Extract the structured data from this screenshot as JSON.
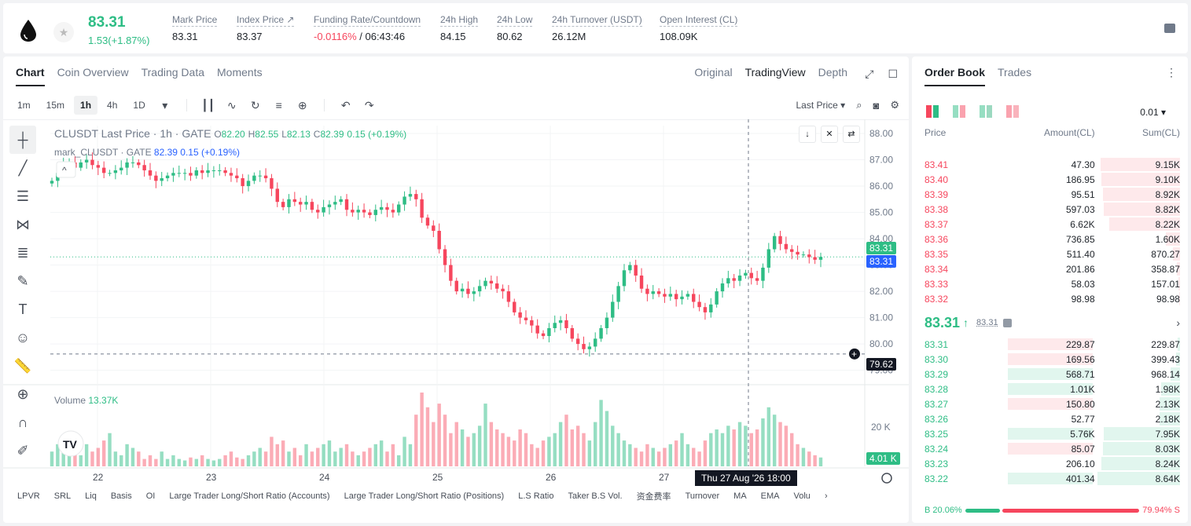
{
  "header": {
    "last_price": "83.31",
    "change": "1.53(+1.87%)",
    "stats": [
      {
        "label": "Mark Price",
        "value": "83.31"
      },
      {
        "label": "Index Price ↗",
        "value": "83.37"
      },
      {
        "label": "Funding Rate/Countdown",
        "value_neg": "-0.0116%",
        "value": " / 06:43:46"
      },
      {
        "label": "24h High",
        "value": "84.15"
      },
      {
        "label": "24h Low",
        "value": "80.62"
      },
      {
        "label": "24h Turnover (USDT)",
        "value": "26.12M"
      },
      {
        "label": "Open Interest (CL)",
        "value": "108.09K"
      }
    ]
  },
  "chart_panel": {
    "tabs": [
      "Chart",
      "Coin Overview",
      "Trading Data",
      "Moments"
    ],
    "views": [
      "Original",
      "TradingView",
      "Depth"
    ],
    "timeframes": [
      "1m",
      "15m",
      "1h",
      "4h",
      "1D"
    ],
    "price_type": "Last Price",
    "legend": {
      "title": "CLUSDT Last Price · 1h · GATE",
      "o_label": "O",
      "o": "82.20",
      "h_label": "H",
      "h": "82.55",
      "l_label": "L",
      "l": "82.13",
      "c_label": "C",
      "c": "82.39",
      "chg": "0.15 (+0.19%)",
      "mark_name": "mark_CLUSDT · GATE",
      "mark_val": "82.39  0.15 (+0.19%)"
    },
    "volume_label": "Volume",
    "volume_value": "13.37K",
    "price_badge_last": "83.31",
    "price_badge_mark": "83.31",
    "crosshair_price": "79.62",
    "volume_badge": "4.01 K",
    "crosshair_time": "Thu 27 Aug '26   18:00",
    "indicators": [
      "LPVR",
      "SRL",
      "Liq",
      "Basis",
      "OI",
      "Large Trader Long/Short Ratio (Accounts)",
      "Large Trader Long/Short Ratio (Positions)",
      "L.S Ratio",
      "Taker B.S Vol.",
      "资金费率",
      "Turnover",
      "MA",
      "EMA",
      "Volu"
    ],
    "colors": {
      "up": "#2ebd85",
      "down": "#f6465d",
      "mark_line": "#2962ff"
    }
  },
  "chart_data": {
    "type": "candlestick",
    "x_ticks": [
      "22",
      "23",
      "24",
      "25",
      "26",
      "27"
    ],
    "y_ticks": [
      "88.00",
      "87.00",
      "86.00",
      "85.00",
      "84.00",
      "83.00",
      "82.00",
      "81.00",
      "80.00",
      "79.00"
    ],
    "ylim": [
      78.6,
      88.3
    ],
    "volume_tick": "20 K",
    "close_path": [
      86.2,
      86.5,
      86.8,
      86.9,
      86.7,
      86.9,
      87.0,
      86.8,
      86.7,
      86.5,
      86.5,
      86.6,
      86.7,
      86.9,
      86.9,
      86.8,
      86.6,
      86.4,
      86.2,
      86.3,
      86.4,
      86.5,
      86.5,
      86.5,
      86.4,
      86.6,
      86.5,
      86.6,
      86.6,
      86.6,
      86.5,
      86.4,
      86.3,
      86.0,
      86.2,
      86.4,
      86.4,
      86.3,
      85.9,
      85.4,
      85.2,
      85.5,
      85.4,
      85.3,
      85.4,
      85.1,
      85.0,
      85.2,
      85.3,
      85.4,
      85.5,
      85.1,
      85.0,
      85.1,
      85.0,
      84.9,
      85.1,
      85.2,
      85.1,
      85.0,
      85.3,
      85.6,
      85.7,
      85.5,
      84.8,
      84.5,
      84.3,
      83.6,
      83.0,
      82.4,
      82.0,
      82.1,
      81.9,
      82.0,
      82.2,
      82.4,
      82.3,
      82.1,
      82.0,
      81.6,
      81.2,
      81.0,
      80.9,
      80.7,
      80.4,
      80.3,
      80.6,
      80.8,
      80.9,
      80.6,
      80.2,
      80.0,
      79.8,
      79.9,
      80.2,
      80.6,
      81.0,
      81.6,
      82.2,
      82.8,
      83.0,
      82.6,
      82.1,
      81.9,
      82.0,
      81.9,
      81.8,
      81.9,
      81.7,
      81.8,
      81.9,
      81.6,
      81.4,
      81.2,
      81.5,
      82.0,
      82.3,
      82.5,
      82.4,
      82.6,
      82.7,
      82.5,
      82.4,
      82.9,
      83.6,
      84.1,
      83.8,
      83.6,
      83.5,
      83.4,
      83.4,
      83.3,
      83.2,
      83.31
    ],
    "volume_levels": [
      0.2,
      0.3,
      0.35,
      0.25,
      0.2,
      0.15,
      0.3,
      0.2,
      0.25,
      0.35,
      0.45,
      0.2,
      0.15,
      0.3,
      0.25,
      0.2,
      0.1,
      0.15,
      0.1,
      0.2,
      0.1,
      0.15,
      0.1,
      0.08,
      0.12,
      0.1,
      0.15,
      0.1,
      0.08,
      0.1,
      0.15,
      0.2,
      0.12,
      0.1,
      0.15,
      0.2,
      0.25,
      0.2,
      0.4,
      0.3,
      0.35,
      0.2,
      0.25,
      0.15,
      0.3,
      0.2,
      0.25,
      0.3,
      0.35,
      0.2,
      0.25,
      0.3,
      0.2,
      0.15,
      0.2,
      0.25,
      0.3,
      0.35,
      0.2,
      0.3,
      0.15,
      0.4,
      0.3,
      0.7,
      1.0,
      0.8,
      0.6,
      0.85,
      0.7,
      0.45,
      0.6,
      0.5,
      0.4,
      0.45,
      0.55,
      0.85,
      0.6,
      0.5,
      0.45,
      0.4,
      0.35,
      0.5,
      0.45,
      0.3,
      0.25,
      0.35,
      0.4,
      0.45,
      0.6,
      0.7,
      0.5,
      0.55,
      0.45,
      0.35,
      0.6,
      0.9,
      0.75,
      0.55,
      0.45,
      0.35,
      0.3,
      0.25,
      0.2,
      0.3,
      0.25,
      0.2,
      0.25,
      0.3,
      0.35,
      0.45,
      0.3,
      0.25,
      0.2,
      0.35,
      0.45,
      0.5,
      0.45,
      0.55,
      0.5,
      0.6,
      0.55,
      0.45,
      0.5,
      0.65,
      0.8,
      0.7,
      0.6,
      0.55,
      0.45,
      0.3,
      0.25,
      0.2,
      0.15,
      0.12
    ]
  },
  "order_book": {
    "tabs": [
      "Order Book",
      "Trades"
    ],
    "tick_size": "0.01 ▾",
    "headers": [
      "Price",
      "Amount(CL)",
      "Sum(CL)"
    ],
    "asks": [
      {
        "p": "83.41",
        "a": "47.30",
        "s": "9.15K",
        "sum_frac": 0.96
      },
      {
        "p": "83.40",
        "a": "186.95",
        "s": "9.10K",
        "sum_frac": 0.95
      },
      {
        "p": "83.39",
        "a": "95.51",
        "s": "8.92K",
        "sum_frac": 0.93
      },
      {
        "p": "83.38",
        "a": "597.03",
        "s": "8.82K",
        "sum_frac": 0.92
      },
      {
        "p": "83.37",
        "a": "6.62K",
        "s": "8.22K",
        "sum_frac": 0.86
      },
      {
        "p": "83.36",
        "a": "736.85",
        "s": "1.60K",
        "sum_frac": 0.17
      },
      {
        "p": "83.35",
        "a": "511.40",
        "s": "870.27",
        "sum_frac": 0.09
      },
      {
        "p": "83.34",
        "a": "201.86",
        "s": "358.87",
        "sum_frac": 0.04
      },
      {
        "p": "83.33",
        "a": "58.03",
        "s": "157.01",
        "sum_frac": 0.02
      },
      {
        "p": "83.32",
        "a": "98.98",
        "s": "98.98",
        "sum_frac": 0.01
      }
    ],
    "mid_price": "83.31",
    "mid_arrow": "↑",
    "mark_price": "83.31",
    "bids": [
      {
        "p": "83.31",
        "a": "229.87",
        "s": "229.87",
        "sum_frac": 0.03,
        "amt_color": "red"
      },
      {
        "p": "83.30",
        "a": "169.56",
        "s": "399.43",
        "sum_frac": 0.05,
        "amt_color": "red"
      },
      {
        "p": "83.29",
        "a": "568.71",
        "s": "968.14",
        "sum_frac": 0.11,
        "amt_color": "green"
      },
      {
        "p": "83.28",
        "a": "1.01K",
        "s": "1.98K",
        "sum_frac": 0.23,
        "amt_color": "green"
      },
      {
        "p": "83.27",
        "a": "150.80",
        "s": "2.13K",
        "sum_frac": 0.25,
        "amt_color": "red"
      },
      {
        "p": "83.26",
        "a": "52.77",
        "s": "2.18K",
        "sum_frac": 0.25,
        "amt_color": "none"
      },
      {
        "p": "83.25",
        "a": "5.76K",
        "s": "7.95K",
        "sum_frac": 0.92,
        "amt_color": "green"
      },
      {
        "p": "83.24",
        "a": "85.07",
        "s": "8.03K",
        "sum_frac": 0.93,
        "amt_color": "red"
      },
      {
        "p": "83.23",
        "a": "206.10",
        "s": "8.24K",
        "sum_frac": 0.95,
        "amt_color": "none"
      },
      {
        "p": "83.22",
        "a": "401.34",
        "s": "8.64K",
        "sum_frac": 1.0,
        "amt_color": "green"
      }
    ],
    "buy_ratio": "20.06%",
    "sell_ratio": "79.94%",
    "buy_label": "B",
    "sell_label": "S",
    "buy_frac": 0.2006
  }
}
